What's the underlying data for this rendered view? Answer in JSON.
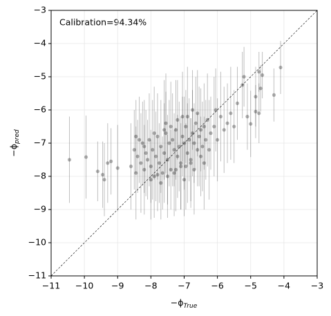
{
  "chart_data": {
    "type": "scatter",
    "annotation": "Calibration=94.34%",
    "x_label": "−ϕ",
    "x_label_sub": "True",
    "y_label": "−ϕ",
    "y_label_sub": "pred",
    "xlim": [
      -11,
      -3
    ],
    "ylim": [
      -11,
      -3
    ],
    "xticks": [
      {
        "value": -11,
        "label": "−11"
      },
      {
        "value": -10,
        "label": "−10"
      },
      {
        "value": -9,
        "label": "−9"
      },
      {
        "value": -8,
        "label": "−8"
      },
      {
        "value": -7,
        "label": "−7"
      },
      {
        "value": -6,
        "label": "−6"
      },
      {
        "value": -5,
        "label": "−5"
      },
      {
        "value": -4,
        "label": "−4"
      },
      {
        "value": -3,
        "label": "−3"
      }
    ],
    "yticks": [
      {
        "value": -11,
        "label": "−11"
      },
      {
        "value": -10,
        "label": "−10"
      },
      {
        "value": -9,
        "label": "−9"
      },
      {
        "value": -8,
        "label": "−8"
      },
      {
        "value": -7,
        "label": "−7"
      },
      {
        "value": -6,
        "label": "−6"
      },
      {
        "value": -5,
        "label": "−5"
      },
      {
        "value": -4,
        "label": "−4"
      },
      {
        "value": -3,
        "label": "−3"
      }
    ],
    "grid": true,
    "color": "#000000",
    "x": [
      -10.45,
      -9.95,
      -9.6,
      -9.45,
      -9.4,
      -9.3,
      -9.2,
      -9.0,
      -4.1,
      -4.3,
      -4.75,
      -4.7,
      -4.65,
      -4.85,
      -5.0,
      -4.85,
      -4.75,
      -5.2,
      -5.25,
      -5.4,
      -5.1,
      -8.6,
      -8.5,
      -8.45,
      -8.4,
      -8.3,
      -8.25,
      -8.2,
      -8.15,
      -8.1,
      -8.05,
      -8.0,
      -7.95,
      -7.9,
      -7.85,
      -7.8,
      -7.75,
      -7.7,
      -7.65,
      -7.6,
      -7.55,
      -7.5,
      -7.45,
      -7.4,
      -7.35,
      -7.3,
      -7.25,
      -7.2,
      -7.15,
      -7.1,
      -7.05,
      -7.0,
      -6.95,
      -6.9,
      -6.85,
      -6.8,
      -6.75,
      -6.7,
      -6.65,
      -6.6,
      -6.55,
      -6.5,
      -6.45,
      -6.4,
      -6.35,
      -6.3,
      -6.2,
      -6.1,
      -6.0,
      -5.9,
      -5.8,
      -5.7,
      -5.6,
      -5.5,
      -8.35,
      -8.0,
      -7.9,
      -7.8,
      -7.6,
      -7.5,
      -7.4,
      -7.3,
      -7.2,
      -7.1,
      -7.0,
      -6.9,
      -6.8,
      -6.7,
      -6.6,
      -6.5,
      -6.4,
      -7.7,
      -7.55,
      -7.25,
      -7.05,
      -6.95,
      -6.75,
      -8.2,
      -8.45,
      -6.25,
      -6.05
    ],
    "values": [
      -7.5,
      -7.42,
      -7.85,
      -7.95,
      -8.1,
      -7.6,
      -7.55,
      -7.75,
      -4.72,
      -5.55,
      -4.85,
      -5.35,
      -4.95,
      -5.6,
      -6.42,
      -6.05,
      -6.1,
      -5.0,
      -5.25,
      -5.8,
      -6.2,
      -7.7,
      -7.2,
      -7.9,
      -7.4,
      -7.6,
      -7.0,
      -7.8,
      -7.3,
      -7.5,
      -6.9,
      -7.7,
      -7.2,
      -8.0,
      -7.4,
      -6.8,
      -7.6,
      -7.1,
      -7.9,
      -7.3,
      -6.7,
      -7.5,
      -7.0,
      -7.8,
      -6.9,
      -7.2,
      -6.6,
      -7.4,
      -7.1,
      -7.7,
      -6.8,
      -7.0,
      -6.5,
      -7.3,
      -6.9,
      -7.6,
      -6.7,
      -7.0,
      -6.4,
      -7.2,
      -6.8,
      -6.6,
      -7.1,
      -6.5,
      -6.9,
      -6.3,
      -6.7,
      -6.5,
      -6.9,
      -6.2,
      -6.6,
      -6.4,
      -6.1,
      -6.5,
      -6.9,
      -8.1,
      -6.7,
      -7.95,
      -6.6,
      -8.0,
      -6.5,
      -7.9,
      -6.3,
      -7.6,
      -8.1,
      -6.2,
      -7.5,
      -7.8,
      -6.1,
      -7.4,
      -7.6,
      -8.2,
      -6.4,
      -7.8,
      -6.2,
      -7.7,
      -6.0,
      -7.1,
      -6.8,
      -7.2,
      -6.0
    ],
    "errors": [
      1.3,
      1.25,
      0.9,
      1.0,
      1.1,
      1.2,
      1.0,
      1.3,
      0.8,
      0.8,
      0.6,
      0.7,
      0.7,
      0.9,
      1.0,
      0.8,
      0.9,
      0.9,
      1.0,
      1.1,
      1.0,
      1.3,
      1.2,
      1.4,
      1.1,
      1.5,
      1.25,
      1.35,
      1.3,
      1.2,
      1.4,
      1.1,
      1.5,
      1.25,
      1.35,
      1.3,
      1.2,
      1.4,
      1.1,
      1.5,
      1.25,
      1.35,
      1.3,
      1.2,
      1.4,
      1.1,
      1.5,
      1.25,
      1.35,
      1.3,
      1.2,
      1.4,
      1.1,
      1.5,
      1.25,
      1.35,
      1.3,
      1.2,
      1.4,
      1.1,
      1.5,
      1.25,
      1.35,
      1.3,
      1.2,
      1.4,
      1.1,
      1.5,
      1.25,
      1.35,
      1.3,
      1.2,
      1.4,
      1.1,
      1.3,
      1.2,
      1.4,
      1.1,
      1.5,
      1.25,
      1.35,
      1.3,
      1.2,
      1.4,
      1.1,
      1.5,
      1.25,
      1.35,
      1.3,
      1.2,
      1.4,
      1.1,
      1.5,
      1.25,
      1.35,
      1.3,
      1.2,
      1.4,
      1.1,
      1.5,
      1.25
    ]
  }
}
